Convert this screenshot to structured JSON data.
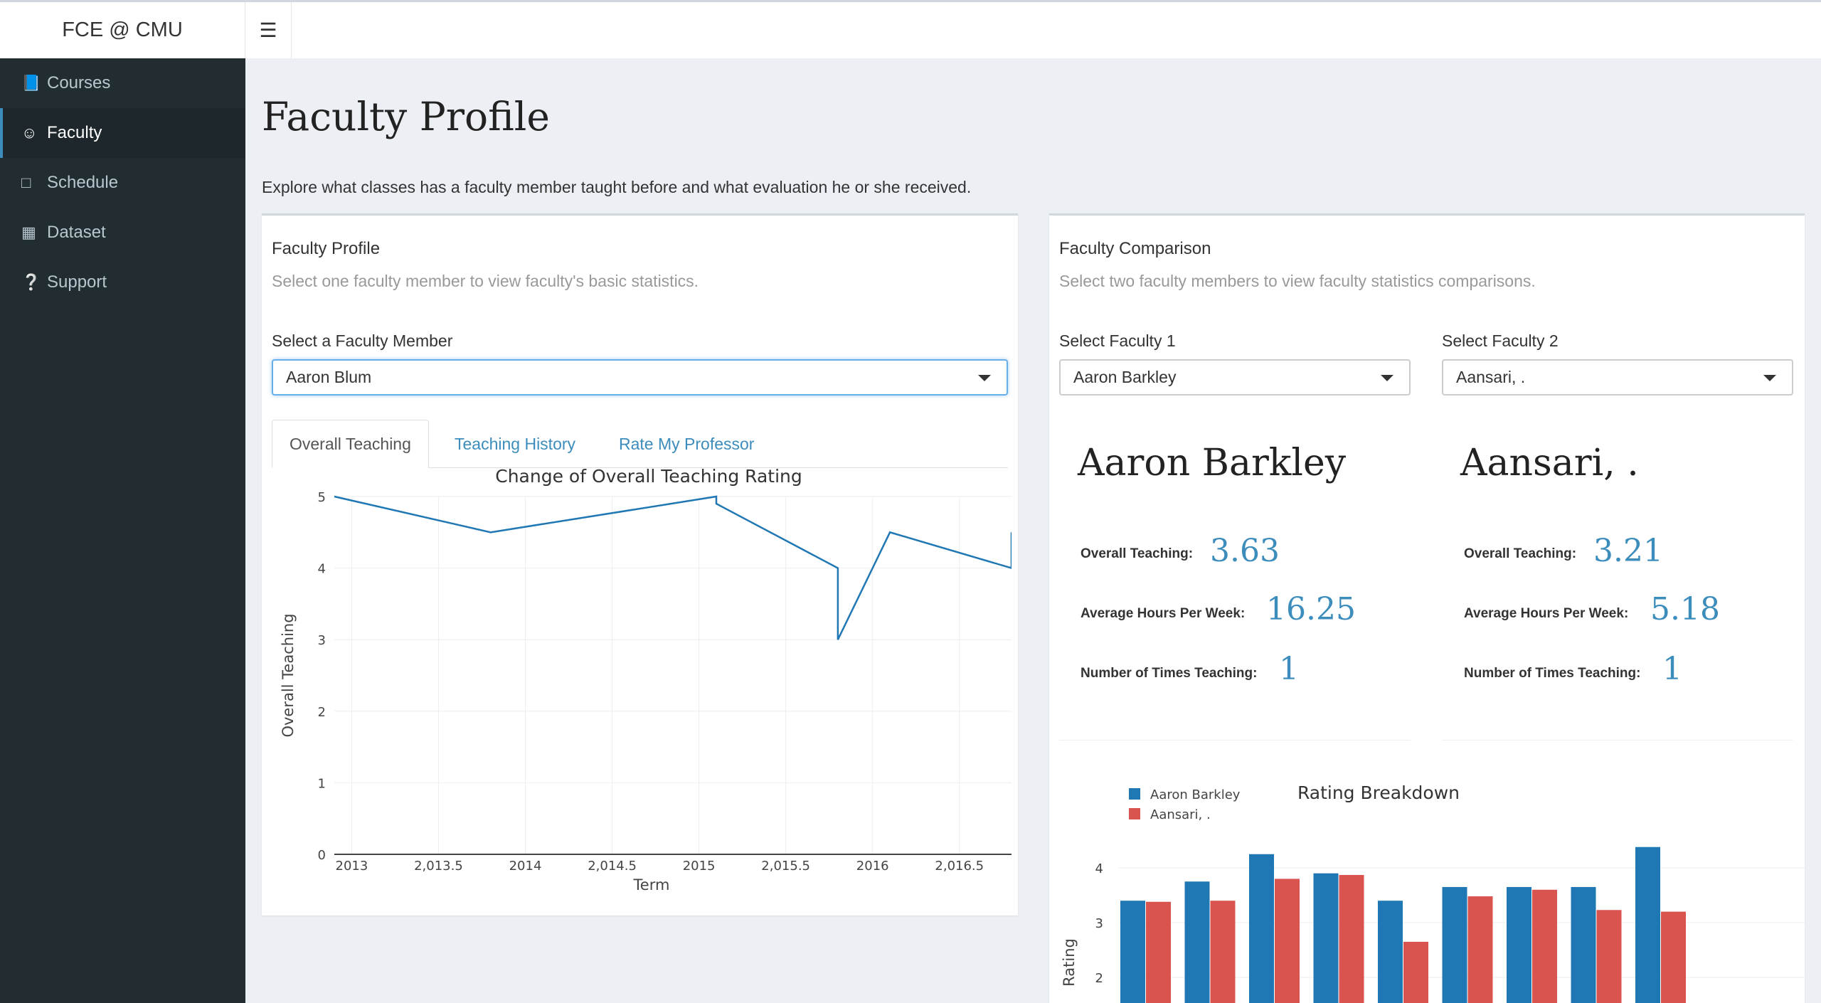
{
  "header": {
    "brand": "FCE @ CMU",
    "menu_icon": "hamburger-icon"
  },
  "sidebar": {
    "items": [
      {
        "label": "Courses",
        "icon": "book-icon",
        "active": false
      },
      {
        "label": "Faculty",
        "icon": "user-circle-icon",
        "active": true
      },
      {
        "label": "Schedule",
        "icon": "calendar-icon",
        "active": false
      },
      {
        "label": "Dataset",
        "icon": "table-icon",
        "active": false
      },
      {
        "label": "Support",
        "icon": "question-circle-icon",
        "active": false
      }
    ]
  },
  "page": {
    "title": "Faculty Profile",
    "description": "Explore what classes has a faculty member taught before and what evaluation he or she received."
  },
  "profile": {
    "title": "Faculty Profile",
    "subtitle": "Select one faculty member to view faculty's basic statistics.",
    "select_label": "Select a Faculty Member",
    "selected": "Aaron Blum",
    "tabs": [
      "Overall Teaching",
      "Teaching History",
      "Rate My Professor"
    ]
  },
  "comparison": {
    "title": "Faculty Comparison",
    "subtitle": "Select two faculty members to view faculty statistics comparisons.",
    "select1_label": "Select Faculty 1",
    "select1_value": "Aaron Barkley",
    "select2_label": "Select Faculty 2",
    "select2_value": "Aansari, .",
    "stat_labels": {
      "overall": "Overall Teaching:",
      "hours": "Average Hours Per Week:",
      "times": "Number of Times Teaching:"
    },
    "faculty1": {
      "name": "Aaron Barkley",
      "overall": "3.63",
      "hours": "16.25",
      "times": "1"
    },
    "faculty2": {
      "name": "Aansari, .",
      "overall": "3.21",
      "hours": "5.18",
      "times": "1"
    }
  },
  "colors": {
    "accent": "#3c8dbc",
    "series1": "#1f77b4",
    "series2": "#d9534f",
    "sidebar": "#222d32"
  },
  "chart_data": [
    {
      "type": "line",
      "title": "Change of Overall Teaching Rating",
      "xlabel": "Term",
      "ylabel": "Overall Teaching",
      "xlim": [
        2012.9,
        2016.8
      ],
      "ylim": [
        0,
        5
      ],
      "xticks": [
        2013,
        2013.5,
        2014,
        2014.5,
        2015,
        2015.5,
        2016,
        2016.5
      ],
      "xtick_labels": [
        "2013",
        "2,013.5",
        "2014",
        "2,014.5",
        "2015",
        "2,015.5",
        "2016",
        "2,016.5"
      ],
      "yticks": [
        0,
        1,
        2,
        3,
        4,
        5
      ],
      "grid": true,
      "x": [
        2012.9,
        2013.8,
        2015.1,
        2015.1,
        2015.8,
        2015.8,
        2016.1,
        2016.8,
        2016.8
      ],
      "y": [
        5,
        4.5,
        5,
        4.9,
        4,
        3,
        4.5,
        4,
        4.5
      ]
    },
    {
      "type": "bar",
      "title": "Rating Breakdown",
      "ylabel": "Rating",
      "yticks": [
        2,
        3,
        4
      ],
      "legend": "top-left",
      "series": [
        {
          "name": "Aaron Barkley",
          "values": [
            3.4,
            3.75,
            4.25,
            3.9,
            3.4,
            3.65,
            3.65,
            3.65,
            4.38
          ]
        },
        {
          "name": "Aansari, .",
          "values": [
            3.38,
            3.4,
            3.8,
            3.87,
            2.65,
            3.48,
            3.6,
            3.23,
            3.2
          ]
        }
      ]
    }
  ]
}
